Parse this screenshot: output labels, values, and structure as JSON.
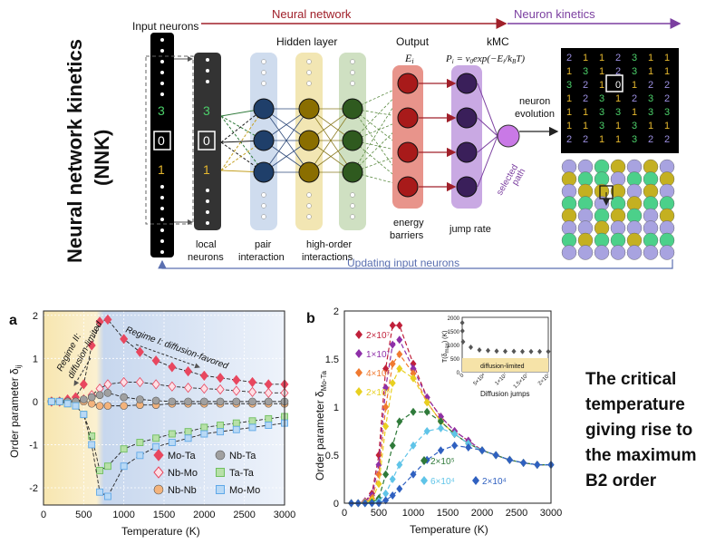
{
  "nnk": {
    "title_line1": "Neural network kinetics",
    "title_line2": "(NNK)",
    "headers": {
      "neural_network": "Neural network",
      "neuron_kinetics": "Neuron kinetics",
      "input_neurons": "Input neurons",
      "hidden_layer": "Hidden layer",
      "output": "Output",
      "output_sym": "E",
      "kmc": "kMC",
      "kmc_formula": "P = v0exp(−E/kBT)"
    },
    "neuron_values": {
      "top": "3",
      "center": "0",
      "bottom": "1"
    },
    "labels": {
      "local_neurons_1": "local",
      "local_neurons_2": "neurons",
      "pair_1": "pair",
      "pair_2": "interaction",
      "high_1": "high-order",
      "high_2": "interactions",
      "energy_1": "energy",
      "energy_2": "barriers",
      "jump_rate": "jump rate",
      "neuron_evolution_1": "neuron",
      "neuron_evolution_2": "evolution",
      "selected_path_1": "selected",
      "selected_path_2": "path",
      "updating": "Updating input neurons"
    },
    "grid_values": [
      [
        "2",
        "1",
        "1",
        "2",
        "3",
        "1",
        "1"
      ],
      [
        "1",
        "3",
        "1",
        "2",
        "3",
        "1",
        "1"
      ],
      [
        "3",
        "2",
        "1",
        "0",
        "1",
        "2",
        "2"
      ],
      [
        "1",
        "2",
        "3",
        "1",
        "2",
        "3",
        "2"
      ],
      [
        "1",
        "1",
        "3",
        "3",
        "1",
        "3",
        "3"
      ],
      [
        "1",
        "1",
        "3",
        "1",
        "3",
        "1",
        "1"
      ],
      [
        "2",
        "2",
        "1",
        "1",
        "3",
        "2",
        "2"
      ]
    ],
    "colors": {
      "pair": "#cfdcee",
      "high1": "#f2e6b3",
      "high2": "#cfe0c2",
      "output": "#e8948b",
      "kmc": "#c9a9e3",
      "arrow_red": "#a0202a",
      "arrow_purple": "#7b3fa0",
      "update_line": "#5a6fb0"
    }
  },
  "panel_a": {
    "label": "a",
    "regime2_1": "Regime II:",
    "regime2_2": "diffusion-limited",
    "regime1": "Regime I: diffusion-favored",
    "xlabel": "Temperature (K)",
    "ylabel": "Order parameter δij",
    "legend": [
      "Mo-Ta",
      "Nb-Ta",
      "Nb-Mo",
      "Ta-Ta",
      "Nb-Nb",
      "Mo-Mo"
    ]
  },
  "panel_b": {
    "label": "b",
    "xlabel": "Temperature (K)",
    "ylabel": "Order parameter δMo-Ta",
    "step_labels_left": [
      "2×10⁷",
      "1×10⁷",
      "4×10⁶",
      "2×10⁶"
    ],
    "step_labels_right": [
      "2×10⁵",
      "6×10⁴",
      "2×10⁴"
    ],
    "inset_xlabel": "Diffusion jumps",
    "inset_ylabel": "T(δmax) (K)",
    "inset_band": "diffusion-limited",
    "inset_xticks": [
      "0",
      "5×10⁶",
      "1×10⁷",
      "1.5×10⁷",
      "2×10⁷"
    ],
    "inset_yticks": [
      "0",
      "500",
      "1000",
      "1500",
      "2000"
    ]
  },
  "right_text": [
    "The critical",
    "temperature",
    "giving rise to",
    "the maximum",
    "B2 order"
  ],
  "chart_data": [
    {
      "type": "line",
      "title": "",
      "xlabel": "Temperature (K)",
      "ylabel": "Order parameter δij",
      "xlim": [
        0,
        3000
      ],
      "ylim": [
        -2.4,
        2.1
      ],
      "xticks": [
        0,
        500,
        1000,
        1500,
        2000,
        2500,
        3000
      ],
      "yticks": [
        -2,
        -1,
        0,
        1,
        2
      ],
      "grid": true,
      "legend_position": "bottom-right",
      "x": [
        100,
        200,
        300,
        400,
        500,
        600,
        700,
        800,
        1000,
        1200,
        1400,
        1600,
        1800,
        2000,
        2200,
        2400,
        2600,
        2800,
        3000
      ],
      "series": [
        {
          "name": "Mo-Ta",
          "color": "#e8475f",
          "marker": "diamond",
          "values": [
            0,
            0,
            0.05,
            0.1,
            0.4,
            1.3,
            1.85,
            1.9,
            1.45,
            1.15,
            0.95,
            0.8,
            0.7,
            0.6,
            0.55,
            0.5,
            0.45,
            0.4,
            0.4
          ]
        },
        {
          "name": "Nb-Mo",
          "color": "#e8475f",
          "marker": "diamond-open",
          "values": [
            0,
            0,
            0,
            0,
            0.05,
            0.15,
            0.3,
            0.4,
            0.45,
            0.45,
            0.4,
            0.35,
            0.32,
            0.3,
            0.28,
            0.25,
            0.22,
            0.2,
            0.2
          ]
        },
        {
          "name": "Nb-Nb",
          "color": "#f3b37c",
          "marker": "circle",
          "values": [
            0,
            0,
            0,
            0,
            0,
            -0.05,
            -0.1,
            -0.1,
            -0.1,
            -0.08,
            -0.08,
            -0.05,
            -0.05,
            -0.05,
            -0.05,
            -0.05,
            -0.05,
            -0.05,
            -0.05
          ]
        },
        {
          "name": "Nb-Ta",
          "color": "#a0a0a0",
          "marker": "circle",
          "values": [
            0,
            0,
            0,
            0,
            0.05,
            0.1,
            0.15,
            0.2,
            0.1,
            0.05,
            0.02,
            0,
            0,
            0,
            0,
            0,
            0,
            0,
            0
          ]
        },
        {
          "name": "Ta-Ta",
          "color": "#6fbf5f",
          "marker": "square",
          "values": [
            0,
            0,
            -0.05,
            -0.1,
            -0.3,
            -0.8,
            -1.6,
            -1.5,
            -1.1,
            -0.95,
            -0.85,
            -0.75,
            -0.7,
            -0.6,
            -0.55,
            -0.5,
            -0.45,
            -0.4,
            -0.35
          ]
        },
        {
          "name": "Mo-Mo",
          "color": "#5fa8e8",
          "marker": "square",
          "values": [
            0,
            0,
            -0.05,
            -0.1,
            -0.3,
            -1.0,
            -2.1,
            -2.2,
            -1.5,
            -1.25,
            -1.05,
            -0.95,
            -0.85,
            -0.75,
            -0.7,
            -0.65,
            -0.6,
            -0.55,
            -0.5
          ]
        }
      ]
    },
    {
      "type": "line",
      "title": "",
      "xlabel": "Temperature (K)",
      "ylabel": "Order parameter δMo-Ta",
      "xlim": [
        0,
        3000
      ],
      "ylim": [
        0,
        2
      ],
      "xticks": [
        0,
        500,
        1000,
        1500,
        2000,
        2500,
        3000
      ],
      "yticks": [
        0,
        0.5,
        1,
        1.5,
        2
      ],
      "x": [
        100,
        200,
        300,
        400,
        500,
        600,
        700,
        800,
        1000,
        1200,
        1400,
        1600,
        1800,
        2000,
        2200,
        2400,
        2600,
        2800,
        3000
      ],
      "series": [
        {
          "name": "2×10⁷",
          "color": "#c0203a",
          "values": [
            0,
            0,
            0.02,
            0.1,
            0.5,
            1.4,
            1.85,
            1.85,
            1.45,
            1.1,
            0.9,
            0.75,
            0.65,
            0.55,
            0.5,
            0.45,
            0.42,
            0.4,
            0.4
          ]
        },
        {
          "name": "1×10⁷",
          "color": "#8e2fa8",
          "values": [
            0,
            0,
            0.02,
            0.08,
            0.4,
            1.2,
            1.65,
            1.7,
            1.4,
            1.1,
            0.9,
            0.75,
            0.65,
            0.55,
            0.5,
            0.45,
            0.42,
            0.4,
            0.4
          ]
        },
        {
          "name": "4×10⁶",
          "color": "#f07a30",
          "values": [
            0,
            0,
            0.01,
            0.05,
            0.3,
            1.0,
            1.45,
            1.55,
            1.35,
            1.05,
            0.85,
            0.72,
            0.62,
            0.55,
            0.5,
            0.45,
            0.42,
            0.4,
            0.4
          ]
        },
        {
          "name": "2×10⁶",
          "color": "#e8d020",
          "values": [
            0,
            0,
            0.01,
            0.03,
            0.2,
            0.8,
            1.25,
            1.4,
            1.3,
            1.05,
            0.85,
            0.72,
            0.62,
            0.55,
            0.5,
            0.45,
            0.42,
            0.4,
            0.4
          ]
        },
        {
          "name": "2×10⁵",
          "color": "#2f7a3a",
          "values": [
            0,
            0,
            0,
            0.01,
            0.05,
            0.3,
            0.6,
            0.85,
            0.95,
            0.95,
            0.85,
            0.72,
            0.62,
            0.55,
            0.5,
            0.45,
            0.42,
            0.4,
            0.4
          ]
        },
        {
          "name": "6×10⁴",
          "color": "#5fc4e8",
          "values": [
            0,
            0,
            0,
            0,
            0.02,
            0.1,
            0.25,
            0.4,
            0.6,
            0.75,
            0.78,
            0.72,
            0.62,
            0.55,
            0.5,
            0.45,
            0.42,
            0.4,
            0.4
          ]
        },
        {
          "name": "2×10⁴",
          "color": "#2f60c0",
          "values": [
            0,
            0,
            0,
            0,
            0,
            0.03,
            0.08,
            0.15,
            0.3,
            0.45,
            0.55,
            0.6,
            0.58,
            0.55,
            0.5,
            0.45,
            0.42,
            0.4,
            0.4
          ]
        }
      ]
    },
    {
      "type": "scatter",
      "title": "",
      "xlabel": "Diffusion jumps",
      "ylabel": "T(δmax) (K)",
      "xlim": [
        0,
        20000000
      ],
      "ylim": [
        0,
        2000
      ],
      "series": [
        {
          "name": "",
          "color": "#555555",
          "x": [
            20000,
            60000,
            200000,
            2000000,
            4000000,
            6000000,
            8000000,
            10000000,
            12000000,
            14000000,
            16000000,
            18000000,
            20000000
          ],
          "values": [
            1800,
            1500,
            1100,
            900,
            800,
            780,
            760,
            750,
            750,
            740,
            740,
            740,
            740
          ]
        }
      ]
    }
  ]
}
